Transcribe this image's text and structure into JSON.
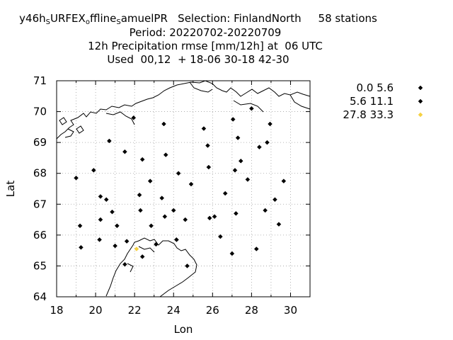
{
  "header": {
    "line1_prefix": "y46h",
    "line1_sub1": "S",
    "line1_mid": "URFEX",
    "line1_sub2": "o",
    "line1_mid2": "ffline",
    "line1_sub3": "S",
    "line1_suffix": "amuelPR   Selection: FinlandNorth     58 stations",
    "line2": "Period: 20220702-20220709",
    "line3": "12h Precipitation rmse [mm/12h] at  06 UTC",
    "line4": "Used  00,12  + 18-06 30-18 42-30"
  },
  "chart_data": {
    "type": "scatter",
    "xlabel": "Lon",
    "ylabel": "Lat",
    "xlim": [
      18,
      31
    ],
    "ylim": [
      64,
      71
    ],
    "xticks": [
      "18",
      "20",
      "22",
      "24",
      "26",
      "28",
      "30"
    ],
    "yticks": [
      "64",
      "65",
      "66",
      "67",
      "68",
      "69",
      "70",
      "71"
    ],
    "grid": true,
    "legend_position": "top-right outside",
    "legend": [
      {
        "label": "0.0 5.6",
        "color": "#000000"
      },
      {
        "label": "5.6 11.1",
        "color": "#000000"
      },
      {
        "label": "27.8 33.3",
        "color": "#f5d142"
      }
    ],
    "series": [
      {
        "name": "0.0 5.6",
        "color": "#000000",
        "points": [
          [
            19.0,
            67.85
          ],
          [
            19.2,
            66.3
          ],
          [
            19.25,
            65.6
          ],
          [
            19.9,
            68.1
          ],
          [
            20.2,
            65.85
          ],
          [
            20.25,
            67.25
          ],
          [
            20.25,
            66.5
          ],
          [
            20.55,
            67.15
          ],
          [
            20.7,
            69.05
          ],
          [
            20.85,
            66.75
          ],
          [
            21.0,
            65.65
          ],
          [
            21.1,
            66.3
          ],
          [
            21.5,
            68.7
          ],
          [
            21.6,
            65.8
          ],
          [
            21.95,
            69.8
          ],
          [
            22.25,
            67.3
          ],
          [
            22.3,
            66.8
          ],
          [
            22.4,
            68.45
          ],
          [
            22.4,
            65.3
          ],
          [
            22.8,
            67.75
          ],
          [
            22.85,
            66.3
          ],
          [
            23.1,
            65.7
          ],
          [
            23.4,
            67.2
          ],
          [
            23.5,
            69.6
          ],
          [
            23.55,
            66.6
          ],
          [
            23.6,
            68.6
          ],
          [
            24.0,
            66.8
          ],
          [
            24.15,
            65.85
          ],
          [
            24.25,
            68.0
          ],
          [
            24.6,
            66.5
          ],
          [
            24.7,
            65.0
          ],
          [
            24.9,
            67.65
          ],
          [
            25.55,
            69.45
          ],
          [
            25.75,
            68.9
          ],
          [
            25.8,
            68.2
          ],
          [
            25.85,
            66.55
          ],
          [
            26.1,
            66.6
          ],
          [
            26.4,
            65.95
          ],
          [
            26.65,
            67.35
          ],
          [
            27.0,
            65.4
          ],
          [
            27.05,
            69.75
          ],
          [
            27.15,
            68.1
          ],
          [
            27.2,
            66.7
          ],
          [
            27.3,
            69.15
          ],
          [
            27.45,
            68.4
          ],
          [
            27.8,
            67.8
          ],
          [
            28.0,
            70.1
          ],
          [
            28.25,
            65.55
          ],
          [
            28.4,
            68.85
          ],
          [
            28.7,
            66.8
          ],
          [
            28.8,
            69.0
          ],
          [
            28.95,
            69.6
          ],
          [
            29.2,
            67.15
          ],
          [
            29.4,
            66.35
          ],
          [
            29.65,
            67.75
          ]
        ]
      },
      {
        "name": "5.6 11.1",
        "color": "#000000",
        "points": [
          [
            21.5,
            65.05
          ],
          [
            24.15,
            65.85
          ]
        ]
      },
      {
        "name": "27.8 33.3",
        "color": "#f5d142",
        "points": [
          [
            22.1,
            65.55
          ]
        ]
      }
    ]
  }
}
